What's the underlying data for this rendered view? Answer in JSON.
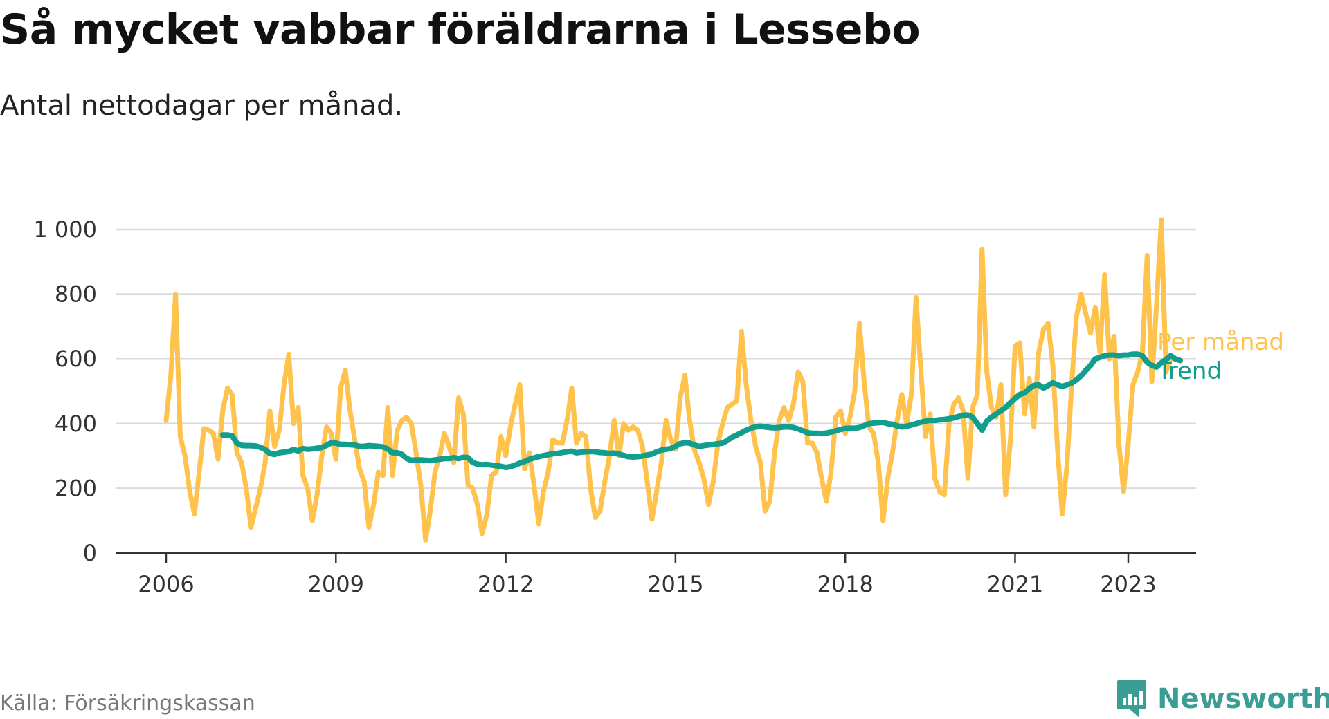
{
  "header": {
    "title": "Så mycket vabbar föräldrarna i Lessebo",
    "subtitle": "Antal nettodagar per månad."
  },
  "footer": {
    "source": "Källa: Försäkringskassan",
    "brand": "Newsworthy",
    "brand_icon": "newsworthy-chart-bubble-icon"
  },
  "colors": {
    "per_manad": "#ffc34d",
    "trend": "#129e8e",
    "grid": "#d9d9d9",
    "axis": "#333333",
    "brand": "#3a9e94"
  },
  "chart_data": {
    "type": "line",
    "title": "Så mycket vabbar föräldrarna i Lessebo",
    "subtitle": "Antal nettodagar per månad.",
    "y_ticks": [
      0,
      200,
      400,
      600,
      800,
      1000
    ],
    "y_tick_labels": [
      "0",
      "200",
      "400",
      "600",
      "800",
      "1 000"
    ],
    "ylim": [
      0,
      1000
    ],
    "x_ticks": [
      2006,
      2009,
      2012,
      2015,
      2018,
      2021,
      2023
    ],
    "x_tick_labels": [
      "2006",
      "2009",
      "2012",
      "2015",
      "2018",
      "2021",
      "2023"
    ],
    "xlim": [
      2006,
      2023.5
    ],
    "grid": "horizontal",
    "legend": "inline-right",
    "series": [
      {
        "name": "Per månad",
        "color": "#ffc34d",
        "start_year": 2006,
        "frequency": "monthly",
        "values": [
          410,
          550,
          800,
          360,
          300,
          190,
          120,
          250,
          385,
          380,
          370,
          290,
          440,
          510,
          490,
          310,
          280,
          200,
          80,
          140,
          200,
          280,
          440,
          330,
          380,
          520,
          615,
          400,
          450,
          240,
          200,
          100,
          180,
          300,
          390,
          370,
          290,
          510,
          565,
          440,
          350,
          260,
          220,
          80,
          150,
          250,
          240,
          450,
          240,
          380,
          410,
          420,
          400,
          310,
          210,
          40,
          130,
          250,
          300,
          370,
          330,
          280,
          480,
          430,
          210,
          200,
          150,
          60,
          120,
          240,
          250,
          360,
          300,
          390,
          460,
          520,
          260,
          310,
          210,
          90,
          190,
          250,
          350,
          340,
          340,
          410,
          510,
          340,
          370,
          360,
          200,
          110,
          130,
          220,
          300,
          410,
          300,
          400,
          380,
          390,
          380,
          330,
          220,
          105,
          190,
          280,
          410,
          350,
          320,
          480,
          550,
          410,
          320,
          280,
          230,
          150,
          220,
          340,
          400,
          450,
          460,
          470,
          685,
          520,
          410,
          330,
          280,
          130,
          160,
          310,
          410,
          450,
          410,
          460,
          560,
          530,
          340,
          340,
          310,
          230,
          160,
          250,
          420,
          440,
          370,
          420,
          500,
          710,
          530,
          390,
          370,
          280,
          100,
          230,
          310,
          410,
          490,
          400,
          490,
          790,
          570,
          360,
          430,
          230,
          190,
          180,
          400,
          460,
          480,
          440,
          230,
          450,
          490,
          940,
          560,
          450,
          420,
          520,
          180,
          350,
          640,
          650,
          430,
          540,
          390,
          620,
          690,
          710,
          580,
          320,
          120,
          270,
          520,
          730,
          800,
          740,
          680,
          760,
          620,
          860,
          600,
          670,
          340,
          190,
          340,
          520,
          560,
          620,
          920,
          530,
          770,
          1030,
          560,
          600
        ]
      },
      {
        "name": "Trend",
        "color": "#129e8e",
        "start_year": 2007,
        "frequency": "monthly",
        "values": [
          365,
          365,
          362,
          340,
          333,
          332,
          332,
          331,
          327,
          320,
          308,
          305,
          310,
          312,
          314,
          320,
          316,
          323,
          321,
          322,
          324,
          326,
          333,
          341,
          340,
          336,
          336,
          335,
          334,
          330,
          330,
          332,
          331,
          330,
          328,
          322,
          310,
          310,
          305,
          292,
          287,
          288,
          288,
          287,
          286,
          288,
          290,
          292,
          292,
          295,
          292,
          296,
          295,
          280,
          275,
          273,
          274,
          272,
          270,
          268,
          265,
          267,
          272,
          278,
          283,
          290,
          294,
          298,
          301,
          304,
          307,
          308,
          311,
          313,
          315,
          310,
          312,
          313,
          314,
          313,
          311,
          310,
          308,
          309,
          306,
          302,
          298,
          297,
          298,
          300,
          303,
          306,
          313,
          318,
          321,
          323,
          330,
          338,
          341,
          340,
          334,
          330,
          332,
          334,
          336,
          338,
          340,
          348,
          358,
          365,
          372,
          380,
          386,
          390,
          392,
          390,
          388,
          387,
          388,
          390,
          390,
          388,
          384,
          378,
          372,
          370,
          370,
          369,
          371,
          374,
          378,
          382,
          385,
          386,
          386,
          388,
          394,
          400,
          402,
          403,
          404,
          400,
          398,
          393,
          390,
          392,
          396,
          400,
          404,
          408,
          410,
          410,
          412,
          413,
          415,
          418,
          422,
          426,
          427,
          420,
          400,
          380,
          408,
          420,
          430,
          440,
          450,
          465,
          478,
          490,
          495,
          508,
          518,
          520,
          510,
          518,
          526,
          520,
          515,
          520,
          525,
          535,
          548,
          565,
          580,
          600,
          605,
          610,
          612,
          612,
          610,
          612,
          612,
          615,
          615,
          610,
          590,
          580,
          575,
          588,
          598,
          610,
          600,
          595
        ]
      }
    ]
  }
}
